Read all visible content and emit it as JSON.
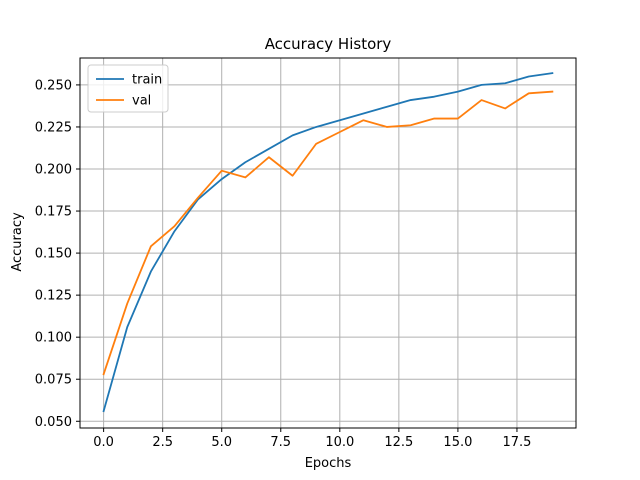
{
  "chart_data": {
    "type": "line",
    "title": "Accuracy History",
    "xlabel": "Epochs",
    "ylabel": "Accuracy",
    "xlim": [
      -1.0,
      20.0
    ],
    "ylim": [
      0.046,
      0.266
    ],
    "x_ticks": [
      0.0,
      2.5,
      5.0,
      7.5,
      10.0,
      12.5,
      15.0,
      17.5
    ],
    "x_tick_labels": [
      "0.0",
      "2.5",
      "5.0",
      "7.5",
      "10.0",
      "12.5",
      "15.0",
      "17.5"
    ],
    "y_ticks": [
      0.05,
      0.075,
      0.1,
      0.125,
      0.15,
      0.175,
      0.2,
      0.225,
      0.25
    ],
    "y_tick_labels": [
      "0.050",
      "0.075",
      "0.100",
      "0.125",
      "0.150",
      "0.175",
      "0.200",
      "0.225",
      "0.250"
    ],
    "grid": true,
    "legend_position": "top-left",
    "x": [
      0,
      1,
      2,
      3,
      4,
      5,
      6,
      7,
      8,
      9,
      10,
      11,
      12,
      13,
      14,
      15,
      16,
      17,
      18,
      19
    ],
    "series": [
      {
        "name": "train",
        "color": "#1f77b4",
        "values": [
          0.056,
          0.106,
          0.139,
          0.163,
          0.182,
          0.194,
          0.204,
          0.212,
          0.22,
          0.225,
          0.229,
          0.233,
          0.237,
          0.241,
          0.243,
          0.246,
          0.25,
          0.251,
          0.255,
          0.257
        ]
      },
      {
        "name": "val",
        "color": "#ff7f0e",
        "values": [
          0.078,
          0.12,
          0.154,
          0.166,
          0.183,
          0.199,
          0.195,
          0.207,
          0.196,
          0.215,
          0.222,
          0.229,
          0.225,
          0.226,
          0.23,
          0.23,
          0.241,
          0.236,
          0.245,
          0.246
        ]
      }
    ]
  }
}
